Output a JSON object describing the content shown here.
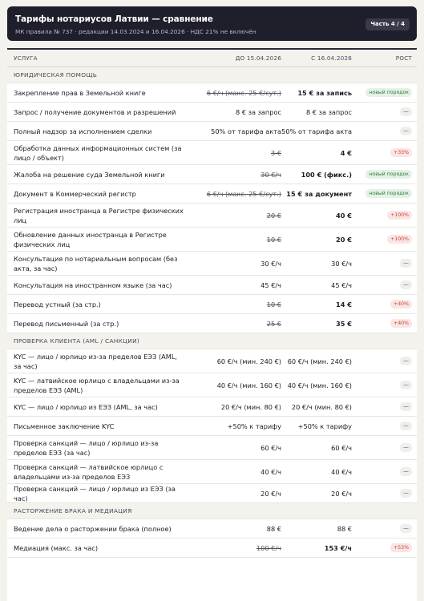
{
  "header": {
    "title": "Тарифы нотариусов Латвии — сравнение",
    "subtitle": "МК правила № 737 · редакции 14.03.2024 и 16.04.2026 · НДС 21% не включён",
    "part": "Часть 4 / 4"
  },
  "columns": {
    "name": "УСЛУГА",
    "old": "ДО 15.04.2026",
    "new": "С 16.04.2026",
    "rost": "РОСТ"
  },
  "sections": [
    {
      "title": "ЮРИДИЧЕСКАЯ ПОМОЩЬ",
      "rows": [
        {
          "name": "Закрепление прав в Земельной книге",
          "old": "6 €/ч (макс. 25 €/сут.)",
          "old_struck": true,
          "new": "15 € за запись",
          "new_bold": true,
          "rost": "новый порядок",
          "rost_kind": "green"
        },
        {
          "name": "Запрос / получение документов и разрешений",
          "old": "8 € за запрос",
          "old_struck": false,
          "new": "8 € за запрос",
          "new_bold": false,
          "rost": "—",
          "rost_kind": "dash"
        },
        {
          "name": "Полный надзор за исполнением сделки",
          "old": "50% от тарифа акта",
          "old_struck": false,
          "new": "50% от тарифа акта",
          "new_bold": false,
          "rost": "—",
          "rost_kind": "dash"
        },
        {
          "name": "Обработка данных информационных систем (за лицо / объект)",
          "old": "3 €",
          "old_struck": true,
          "new": "4 €",
          "new_bold": true,
          "rost": "+33%",
          "rost_kind": "red"
        },
        {
          "name": "Жалоба на решение суда Земельной книги",
          "old": "30 €/ч",
          "old_struck": true,
          "new": "100 € (фикс.)",
          "new_bold": true,
          "rost": "новый порядок",
          "rost_kind": "green"
        },
        {
          "name": "Документ в Коммерческий регистр",
          "old": "6 €/ч (макс. 25 €/сут.)",
          "old_struck": true,
          "new": "15 € за документ",
          "new_bold": true,
          "rost": "новый порядок",
          "rost_kind": "green"
        },
        {
          "name": "Регистрация иностранца в Регистре физических лиц",
          "old": "20 €",
          "old_struck": true,
          "new": "40 €",
          "new_bold": true,
          "rost": "+100%",
          "rost_kind": "red"
        },
        {
          "name": "Обновление данных иностранца в Регистре физических лиц",
          "old": "10 €",
          "old_struck": true,
          "new": "20 €",
          "new_bold": true,
          "rost": "+100%",
          "rost_kind": "red"
        },
        {
          "name": "Консультация по нотариальным вопросам (без акта, за час)",
          "old": "30 €/ч",
          "old_struck": false,
          "new": "30 €/ч",
          "new_bold": false,
          "rost": "—",
          "rost_kind": "dash"
        },
        {
          "name": "Консультация на иностранном языке (за час)",
          "old": "45 €/ч",
          "old_struck": false,
          "new": "45 €/ч",
          "new_bold": false,
          "rost": "—",
          "rost_kind": "dash"
        },
        {
          "name": "Перевод устный (за стр.)",
          "old": "10 €",
          "old_struck": true,
          "new": "14 €",
          "new_bold": true,
          "rost": "+40%",
          "rost_kind": "red"
        },
        {
          "name": "Перевод письменный (за стр.)",
          "old": "25 €",
          "old_struck": true,
          "new": "35 €",
          "new_bold": true,
          "rost": "+40%",
          "rost_kind": "red"
        }
      ]
    },
    {
      "title": "ПРОВЕРКА КЛИЕНТА (AML / САНКЦИИ)",
      "rows": [
        {
          "name": "KYC — лицо / юрлицо из-за пределов ЕЭЗ (AML, за час)",
          "old": "60 €/ч (мин. 240 €)",
          "old_struck": false,
          "new": "60 €/ч (мин. 240 €)",
          "new_bold": false,
          "rost": "—",
          "rost_kind": "dash"
        },
        {
          "name": "KYC — латвийское юрлицо с владельцами из-за пределов ЕЭЗ (AML)",
          "old": "40 €/ч (мин. 160 €)",
          "old_struck": false,
          "new": "40 €/ч (мин. 160 €)",
          "new_bold": false,
          "rost": "—",
          "rost_kind": "dash"
        },
        {
          "name": "KYC — лицо / юрлицо из ЕЭЗ (AML, за час)",
          "old": "20 €/ч (мин. 80 €)",
          "old_struck": false,
          "new": "20 €/ч (мин. 80 €)",
          "new_bold": false,
          "rost": "—",
          "rost_kind": "dash"
        },
        {
          "name": "Письменное заключение KYC",
          "old": "+50% к тарифу",
          "old_struck": false,
          "new": "+50% к тарифу",
          "new_bold": false,
          "rost": "—",
          "rost_kind": "dash"
        },
        {
          "name": "Проверка санкций — лицо / юрлицо из-за пределов ЕЭЗ (за час)",
          "old": "60 €/ч",
          "old_struck": false,
          "new": "60 €/ч",
          "new_bold": false,
          "rost": "—",
          "rost_kind": "dash"
        },
        {
          "name": "Проверка санкций — латвийское юрлицо с владельцами из-за пределов ЕЭЗ",
          "old": "40 €/ч",
          "old_struck": false,
          "new": "40 €/ч",
          "new_bold": false,
          "rost": "—",
          "rost_kind": "dash"
        },
        {
          "name": "Проверка санкций — лицо / юрлицо из ЕЭЗ (за час)",
          "old": "20 €/ч",
          "old_struck": false,
          "new": "20 €/ч",
          "new_bold": false,
          "rost": "—",
          "rost_kind": "dash"
        }
      ]
    },
    {
      "title": "РАСТОРЖЕНИЕ БРАКА И МЕДИАЦИЯ",
      "rows": [
        {
          "name": "Ведение дела о расторжении брака (полное)",
          "old": "88 €",
          "old_struck": false,
          "new": "88 €",
          "new_bold": false,
          "rost": "—",
          "rost_kind": "dash"
        },
        {
          "name": "Медиация (макс. за час)",
          "old": "100 €/ч",
          "old_struck": true,
          "new": "153 €/ч",
          "new_bold": true,
          "rost": "+53%",
          "rost_kind": "red"
        }
      ]
    }
  ]
}
